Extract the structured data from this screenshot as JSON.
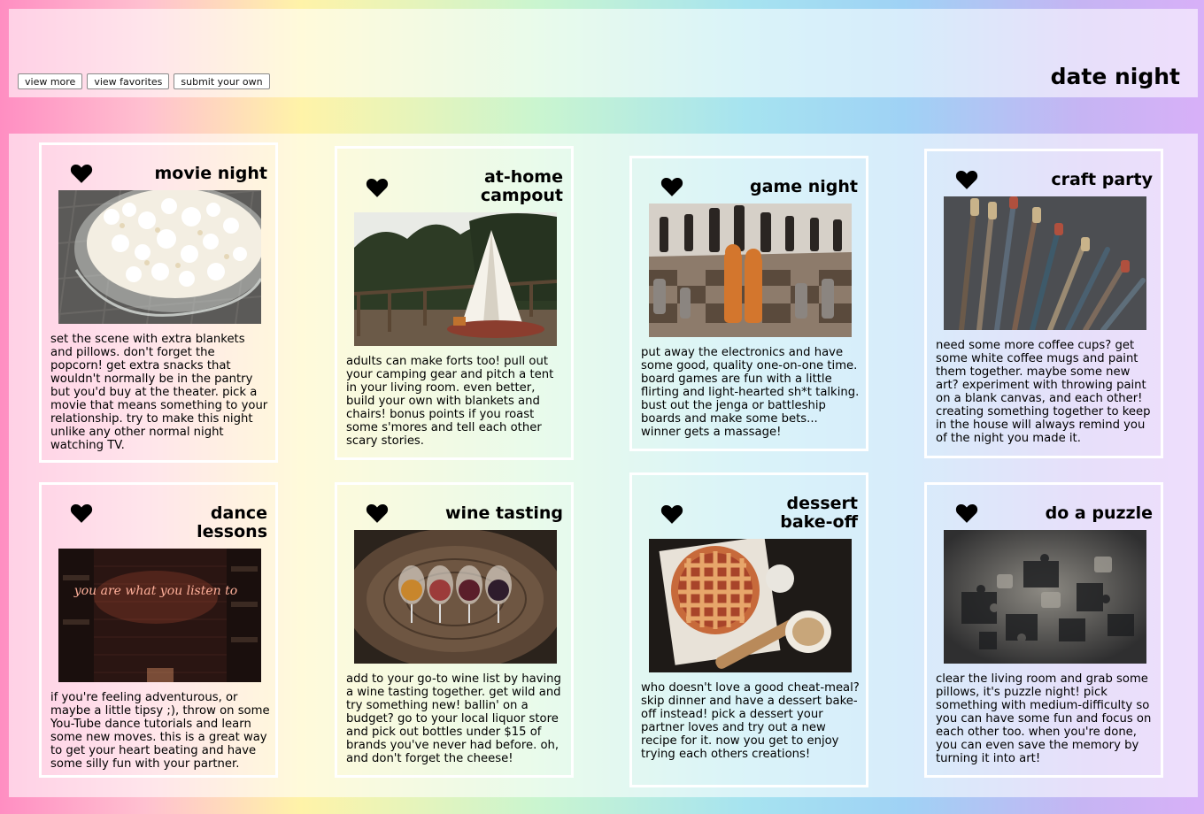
{
  "header": {
    "title": "date night",
    "nav": [
      "view more",
      "view favorites",
      "submit your own"
    ]
  },
  "cards": [
    {
      "title": "movie night",
      "photo": "popcorn-bowl",
      "text": "set the scene with extra blankets and pillows. don't forget the popcorn! get extra snacks that wouldn't normally be in the pantry but you'd buy at the theater. pick a movie that means something to your relationship. try to make this night unlike any other normal night watching TV."
    },
    {
      "title": "at-home campout",
      "photo": "teepee-tent",
      "text": "adults can make forts too! pull out your camping gear and pitch a tent in your living room. even better, build your own with blankets and chairs! bonus points if you roast some s'mores and tell each other scary stories."
    },
    {
      "title": "game night",
      "photo": "chess-board",
      "text": "put away the electronics and have some good, quality one-on-one time. board games are fun with a little flirting and light-hearted sh*t talking. bust out the jenga or battleship boards and make some bets... winner gets a massage!"
    },
    {
      "title": "craft party",
      "photo": "paint-brushes",
      "text": "need some more coffee cups? get some white coffee mugs and paint them together. maybe some new art? experiment with throwing paint on a blank canvas, and each other! creating something together to keep in the house will always remind you of the night you made it."
    },
    {
      "title": "dance lessons",
      "photo": "neon-sign",
      "neon": "you are what you listen to",
      "text": "if you're feeling adventurous, or maybe a little tipsy ;), throw on some You-Tube dance tutorials and learn some new moves. this is a great way to get your heart beating and have some silly fun with your partner."
    },
    {
      "title": "wine tasting",
      "photo": "wine-glasses",
      "text": "add to your go-to wine list by having a wine tasting together. get wild and try something new! ballin' on a budget? go to your local liquor store and pick out bottles under $15 of brands you've never had before. oh, and don't forget the cheese!"
    },
    {
      "title": "dessert bake-off",
      "photo": "lattice-pie",
      "text": "who doesn't love a good cheat-meal? skip dinner and have a dessert bake-off instead! pick a dessert your partner loves and try out a new recipe for it. now you get to enjoy trying each others creations!"
    },
    {
      "title": "do a puzzle",
      "photo": "puzzle-pieces",
      "text": "clear the living room and grab some pillows, it's puzzle night! pick something with medium-difficulty so you can have some fun and focus on each other too. when you're done, you can even save the memory by turning it into art!"
    }
  ]
}
